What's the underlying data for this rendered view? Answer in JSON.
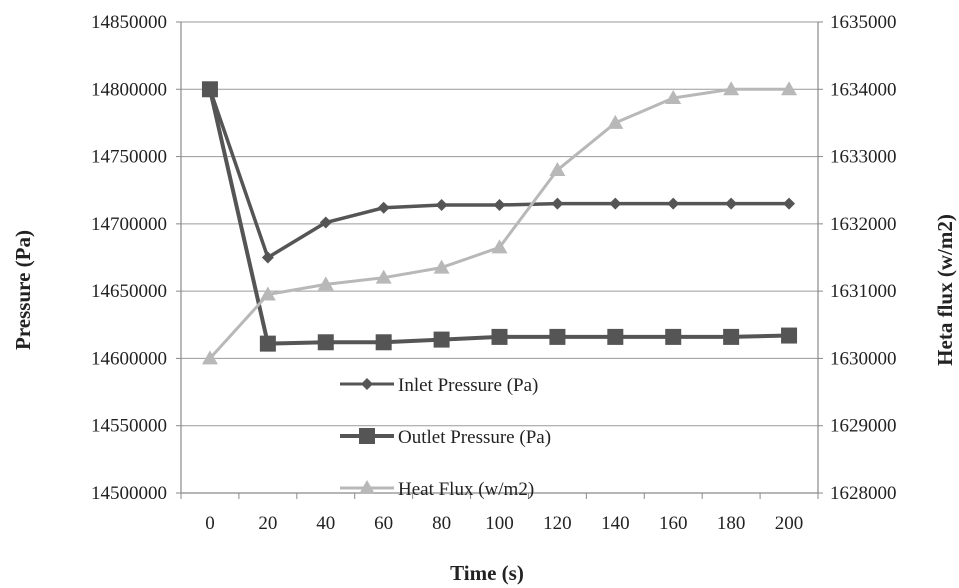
{
  "chart_data": {
    "type": "line",
    "title": "",
    "xlabel": "Time (s)",
    "ylabel": "Pressure (Pa)",
    "y2label": "Heta flux (w/m2)",
    "x": [
      0,
      20,
      40,
      60,
      80,
      100,
      120,
      140,
      160,
      180,
      200
    ],
    "xticks": [
      "0",
      "20",
      "40",
      "60",
      "80",
      "100",
      "120",
      "140",
      "160",
      "180",
      "200"
    ],
    "ylim": [
      14500000,
      14850000
    ],
    "yticks": [
      "14500000",
      "14550000",
      "14600000",
      "14650000",
      "14700000",
      "14750000",
      "14800000",
      "14850000"
    ],
    "y2lim": [
      1628000,
      1635000
    ],
    "y2ticks": [
      "1628000",
      "1629000",
      "1630000",
      "1631000",
      "1632000",
      "1633000",
      "1634000",
      "1635000"
    ],
    "grid": true,
    "legend_position": "center-left",
    "series": [
      {
        "name": "Inlet Pressure (Pa)",
        "axis": "left",
        "marker": "diamond",
        "color": "#555555",
        "values": [
          14800000,
          14675000,
          14701000,
          14712000,
          14714000,
          14714000,
          14715000,
          14715000,
          14715000,
          14715000,
          14715000
        ]
      },
      {
        "name": "Outlet Pressure (Pa)",
        "axis": "left",
        "marker": "square",
        "color": "#555555",
        "values": [
          14800000,
          14611000,
          14612000,
          14612000,
          14614000,
          14616000,
          14616000,
          14616000,
          14616000,
          14616000,
          14617000
        ]
      },
      {
        "name": "Heat Flux (w/m2)",
        "axis": "right",
        "marker": "triangle",
        "color": "#b8b8b8",
        "values": [
          1630000,
          1630950,
          1631100,
          1631200,
          1631350,
          1631650,
          1632800,
          1633500,
          1633870,
          1634000,
          1634000
        ]
      }
    ]
  }
}
